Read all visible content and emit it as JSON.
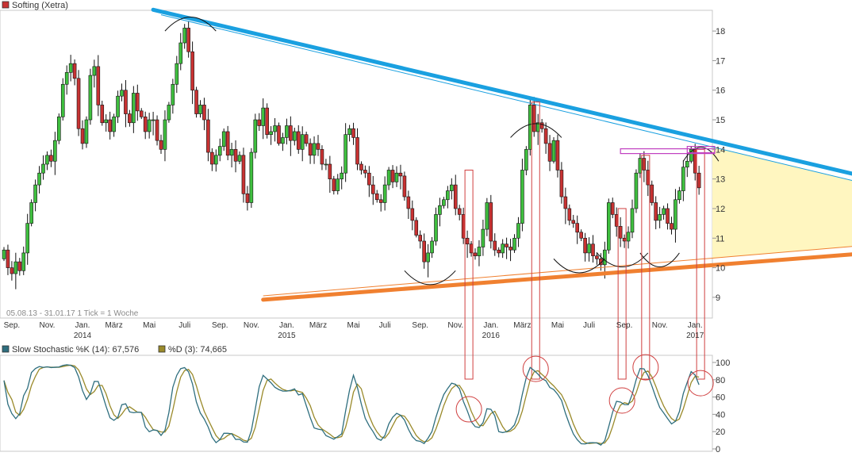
{
  "chart_data": {
    "title": "Softing (Xetra)",
    "type": "candlestick",
    "period_info": "05.08.13 - 31.01.17   1 Tick = 1 Woche",
    "colors": {
      "up": "#3fbf3f",
      "down": "#c83232",
      "resistance": "#1aa0e0",
      "support": "#f08030",
      "triangle_fill": "#fff6c0",
      "marker": "#d04040",
      "magenta_box": "#c040c0",
      "stoch_k": "#2e6e7e",
      "stoch_d": "#9a8a2a"
    },
    "price_axis": {
      "ticks": [
        9,
        10,
        11,
        12,
        13,
        14,
        15,
        16,
        17,
        18
      ],
      "ylim": [
        8.3,
        18.7
      ]
    },
    "x_labels": [
      {
        "label": "Sep.",
        "i": 2
      },
      {
        "label": "Nov.",
        "i": 11
      },
      {
        "label": "Jan.",
        "i": 20,
        "year": "2014"
      },
      {
        "label": "März",
        "i": 28
      },
      {
        "label": "Mai",
        "i": 37
      },
      {
        "label": "Juli",
        "i": 46
      },
      {
        "label": "Sep.",
        "i": 55
      },
      {
        "label": "Nov.",
        "i": 63
      },
      {
        "label": "Jan.",
        "i": 72,
        "year": "2015"
      },
      {
        "label": "März",
        "i": 80
      },
      {
        "label": "Mai",
        "i": 89
      },
      {
        "label": "Juli",
        "i": 97
      },
      {
        "label": "Sep.",
        "i": 106
      },
      {
        "label": "Nov.",
        "i": 115
      },
      {
        "label": "Jan.",
        "i": 124,
        "year": "2016"
      },
      {
        "label": "März",
        "i": 132
      },
      {
        "label": "Mai",
        "i": 141
      },
      {
        "label": "Juli",
        "i": 149
      },
      {
        "label": "Sep.",
        "i": 158
      },
      {
        "label": "Nov.",
        "i": 167
      },
      {
        "label": "Jan.",
        "i": 176,
        "year": "2017"
      }
    ],
    "close": [
      10.6,
      10.0,
      9.8,
      10.2,
      9.9,
      10.5,
      11.5,
      12.2,
      12.8,
      13.2,
      13.5,
      13.8,
      13.6,
      14.3,
      15.1,
      16.2,
      16.6,
      16.9,
      16.4,
      14.7,
      14.2,
      15.0,
      16.5,
      16.8,
      15.5,
      14.9,
      15.0,
      14.6,
      15.1,
      15.8,
      16.0,
      15.2,
      14.9,
      15.9,
      15.3,
      15.1,
      14.6,
      15.0,
      15.0,
      14.3,
      14.0,
      15.0,
      15.5,
      16.2,
      16.9,
      17.6,
      18.1,
      17.3,
      16.0,
      15.2,
      15.5,
      15.0,
      13.9,
      13.5,
      13.8,
      14.1,
      14.6,
      13.8,
      14.0,
      13.6,
      13.8,
      12.5,
      12.2,
      13.9,
      15.0,
      14.8,
      15.4,
      14.5,
      14.6,
      14.8,
      14.2,
      14.4,
      14.8,
      14.3,
      14.6,
      14.0,
      14.5,
      14.2,
      13.8,
      14.2,
      14.0,
      13.5,
      13.5,
      13.0,
      12.6,
      13.0,
      13.2,
      14.5,
      14.7,
      14.4,
      13.5,
      13.3,
      13.2,
      12.8,
      12.5,
      12.3,
      12.2,
      12.8,
      13.3,
      12.9,
      13.2,
      13.1,
      12.4,
      12.0,
      11.6,
      11.1,
      10.9,
      10.2,
      10.5,
      10.9,
      11.8,
      12.1,
      12.3,
      12.6,
      12.8,
      12.0,
      11.8,
      11.0,
      10.8,
      10.5,
      10.4,
      10.7,
      11.3,
      12.2,
      10.9,
      10.6,
      10.5,
      10.8,
      10.7,
      10.6,
      11.0,
      11.5,
      13.3,
      14.0,
      15.5,
      14.6,
      14.9,
      14.7,
      14.2,
      13.6,
      14.3,
      13.3,
      12.4,
      12.0,
      11.6,
      11.5,
      11.2,
      11.0,
      10.5,
      10.8,
      10.4,
      10.3,
      10.1,
      10.6,
      12.2,
      11.8,
      11.4,
      11.0,
      10.9,
      11.2,
      12.0,
      13.2,
      13.7,
      13.3,
      12.8,
      12.2,
      11.6,
      11.8,
      12.0,
      11.5,
      11.3,
      12.3,
      12.6,
      13.4,
      13.6,
      14.0,
      13.2,
      12.7
    ],
    "stoch_legend": {
      "k_label": "Slow Stochastic %K (14): 67,576",
      "d_label": "%D (3): 74,665"
    },
    "stoch_axis": {
      "ticks": [
        0,
        20,
        40,
        60,
        80,
        100
      ],
      "ylim": [
        0,
        100
      ]
    }
  }
}
